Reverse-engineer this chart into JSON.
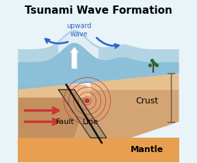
{
  "title": "Tsunami Wave Formation",
  "title_fontsize": 11,
  "bg_color": "#e8f4f8",
  "ocean_color": "#7ab8d4",
  "ocean_color2": "#aacfe0",
  "crust_color": "#d4a574",
  "crust_color2": "#c49060",
  "mantle_color": "#e8a050",
  "crust_label": "Crust",
  "mantle_label": "Mantle",
  "fault_label": "Fault",
  "line_label": "Line",
  "upward_label": "upward\nwave",
  "label_fontsize": 9,
  "arrow_color_blue": "#3366cc",
  "arrow_color_red": "#cc3333",
  "epicenter_color": "#cc3333",
  "wave_ring_color": "#cc3333"
}
